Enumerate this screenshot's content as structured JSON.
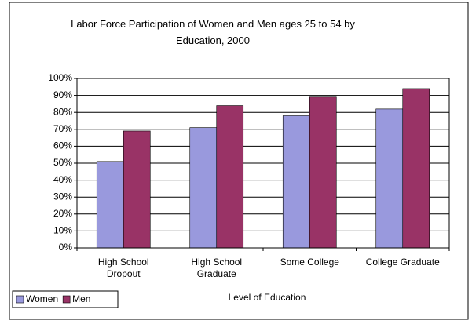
{
  "chart_data": {
    "type": "bar",
    "title": "Labor Force Participation of Women and Men ages 25 to 54 by Education, 2000",
    "x_label": "Level of Education",
    "categories": [
      "High School Dropout",
      "High School Graduate",
      "Some College",
      "College Graduate"
    ],
    "series": [
      {
        "name": "Women",
        "color": "#9999dd",
        "values": [
          51,
          71,
          78,
          82
        ]
      },
      {
        "name": "Men",
        "color": "#993366",
        "values": [
          69,
          84,
          89,
          94
        ]
      }
    ],
    "ylim": [
      0,
      100
    ],
    "yticks": [
      {
        "value": 0,
        "label": "0%"
      },
      {
        "value": 10,
        "label": "10%"
      },
      {
        "value": 20,
        "label": "20%"
      },
      {
        "value": 30,
        "label": "30%"
      },
      {
        "value": 40,
        "label": "40%"
      },
      {
        "value": 50,
        "label": "50%"
      },
      {
        "value": 60,
        "label": "60%"
      },
      {
        "value": 70,
        "label": "70%"
      },
      {
        "value": 80,
        "label": "80%"
      },
      {
        "value": 90,
        "label": "90%"
      },
      {
        "value": 100,
        "label": "100%"
      }
    ],
    "grid": true,
    "legend": "bottom-left"
  }
}
